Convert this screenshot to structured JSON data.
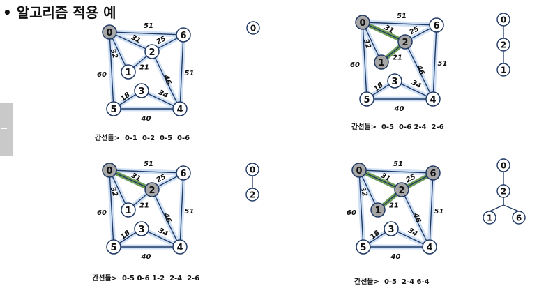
{
  "title": "• 알고리즘 적용 예",
  "graph": {
    "nodes": [
      "0",
      "1",
      "2",
      "3",
      "4",
      "5",
      "6"
    ],
    "edges": [
      {
        "a": "0",
        "b": "1",
        "w": "32"
      },
      {
        "a": "0",
        "b": "2",
        "w": "31"
      },
      {
        "a": "0",
        "b": "5",
        "w": "60"
      },
      {
        "a": "0",
        "b": "6",
        "w": "51"
      },
      {
        "a": "1",
        "b": "2",
        "w": "21"
      },
      {
        "a": "2",
        "b": "6",
        "w": "25"
      },
      {
        "a": "2",
        "b": "4",
        "w": "46"
      },
      {
        "a": "6",
        "b": "4",
        "w": "51"
      },
      {
        "a": "3",
        "b": "5",
        "w": "18"
      },
      {
        "a": "3",
        "b": "4",
        "w": "34"
      },
      {
        "a": "5",
        "b": "4",
        "w": "40"
      }
    ]
  },
  "panels": [
    {
      "caption": "간선들>  0-1  0-2  0-5  0-6",
      "visited": [
        "0"
      ],
      "green_edges": [],
      "tree_nodes": [
        "0"
      ],
      "tree_edges": []
    },
    {
      "caption": "간선들>  0-5  0-6 2-4  2-6",
      "visited": [
        "0",
        "2",
        "1"
      ],
      "green_edges": [
        [
          "0",
          "2"
        ],
        [
          "2",
          "1"
        ]
      ],
      "tree_nodes": [
        "0",
        "2",
        "1"
      ],
      "tree_edges": [
        [
          "0",
          "2"
        ],
        [
          "2",
          "1"
        ]
      ]
    },
    {
      "caption": "간선들>  0-5 0-6 1-2  2-4  2-6",
      "visited": [
        "0",
        "2"
      ],
      "green_edges": [
        [
          "0",
          "2"
        ]
      ],
      "tree_nodes": [
        "0",
        "2"
      ],
      "tree_edges": [
        [
          "0",
          "2"
        ]
      ]
    },
    {
      "caption": "간선들>  0-5  2-4 6-4",
      "visited": [
        "0",
        "2",
        "1",
        "6"
      ],
      "green_edges": [
        [
          "0",
          "2"
        ],
        [
          "2",
          "1"
        ],
        [
          "2",
          "6"
        ]
      ],
      "tree_nodes": [
        "0",
        "2",
        "1",
        "6"
      ],
      "tree_edges": [
        [
          "0",
          "2"
        ],
        [
          "2",
          "1"
        ],
        [
          "2",
          "6"
        ]
      ]
    }
  ]
}
